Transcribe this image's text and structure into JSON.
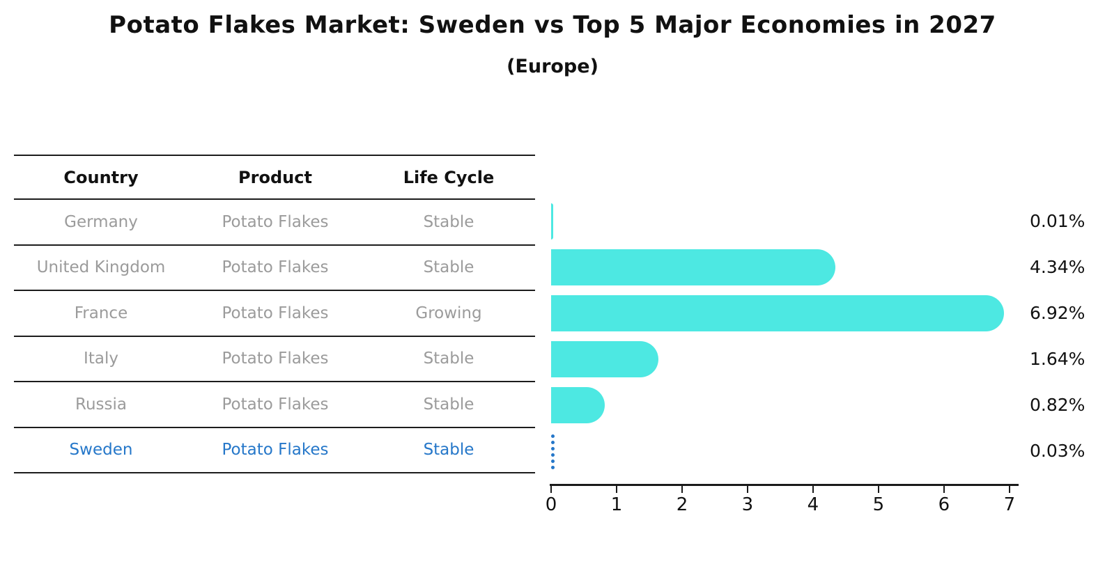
{
  "title": "Potato Flakes Market: Sweden vs Top 5 Major Economies in 2027",
  "subtitle": "(Europe)",
  "colors": {
    "bar": "#4DE8E2",
    "highlight": "#2577C9",
    "row_text": "#9b9b9b",
    "header_text": "#111111",
    "axis": "#1a1a1a"
  },
  "table": {
    "headers": [
      "Country",
      "Product",
      "Life Cycle"
    ],
    "rows": [
      {
        "country": "Germany",
        "product": "Potato Flakes",
        "life_cycle": "Stable",
        "label": "0.01%",
        "highlight": false
      },
      {
        "country": "United Kingdom",
        "product": "Potato Flakes",
        "life_cycle": "Stable",
        "label": "4.34%",
        "highlight": false
      },
      {
        "country": "France",
        "product": "Potato Flakes",
        "life_cycle": "Growing",
        "label": "6.92%",
        "highlight": false
      },
      {
        "country": "Italy",
        "product": "Potato Flakes",
        "life_cycle": "Stable",
        "label": "1.64%",
        "highlight": false
      },
      {
        "country": "Russia",
        "product": "Potato Flakes",
        "life_cycle": "Stable",
        "label": "0.82%",
        "highlight": false
      },
      {
        "country": "Sweden",
        "product": "Potato Flakes",
        "life_cycle": "Stable",
        "label": "0.03%",
        "highlight": true
      }
    ]
  },
  "chart_data": {
    "type": "bar",
    "orientation": "horizontal",
    "title": "Potato Flakes Market: Sweden vs Top 5 Major Economies in 2027 (Europe)",
    "categories": [
      "Germany",
      "United Kingdom",
      "France",
      "Italy",
      "Russia",
      "Sweden"
    ],
    "values": [
      0.01,
      4.34,
      6.92,
      1.64,
      0.82,
      0.03
    ],
    "value_labels": [
      "0.01%",
      "4.34%",
      "6.92%",
      "1.64%",
      "0.82%",
      "0.03%"
    ],
    "units": "percent",
    "x_ticks": [
      0,
      1,
      2,
      3,
      4,
      5,
      6,
      7
    ],
    "xlim": [
      0,
      7.15
    ],
    "grid": false,
    "legend": false,
    "highlight_category": "Sweden",
    "highlight_style": "dotted-blue-line",
    "bar_style": "rounded-right-cap"
  }
}
